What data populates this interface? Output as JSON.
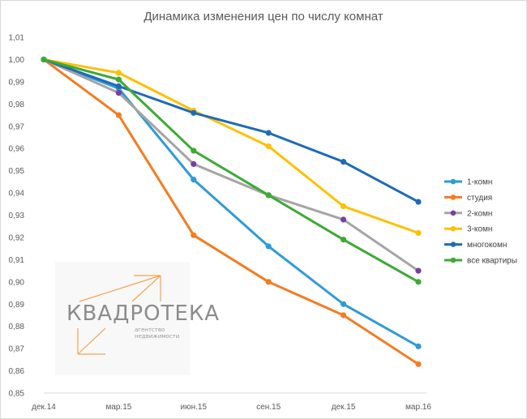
{
  "chart_data": {
    "type": "line",
    "title": "Динамика изменения цен по числу комнат",
    "categories": [
      "дек.14",
      "мар.15",
      "июн.15",
      "сен.15",
      "дек.15",
      "мар.16"
    ],
    "y_tick_labels": [
      "0,85",
      "0,86",
      "0,87",
      "0,88",
      "0,89",
      "0,90",
      "0,91",
      "0,92",
      "0,93",
      "0,94",
      "0,95",
      "0,96",
      "0,97",
      "0,98",
      "0,99",
      "1,00",
      "1,01"
    ],
    "ylim": [
      0.85,
      1.01
    ],
    "grid": false,
    "legend_position": "right",
    "series": [
      {
        "name": "1-комн",
        "color": "#2e9bd6",
        "values": [
          1.0,
          0.987,
          0.946,
          0.916,
          0.89,
          0.871
        ]
      },
      {
        "name": "студия",
        "color": "#f47c20",
        "values": [
          1.0,
          0.975,
          0.921,
          0.9,
          0.885,
          0.863
        ]
      },
      {
        "name": "2-комн",
        "color": "#a5a5a5",
        "marker_color": "#7a3ea0",
        "values": [
          1.0,
          0.985,
          0.953,
          0.939,
          0.928,
          0.905
        ]
      },
      {
        "name": "3-комн",
        "color": "#ffc000",
        "values": [
          1.0,
          0.994,
          0.977,
          0.961,
          0.934,
          0.922
        ]
      },
      {
        "name": "многокомн",
        "color": "#1f6ab8",
        "values": [
          1.0,
          0.988,
          0.976,
          0.967,
          0.954,
          0.936
        ]
      },
      {
        "name": "все квартиры",
        "color": "#3daa35",
        "values": [
          1.0,
          0.991,
          0.959,
          0.939,
          0.919,
          0.9
        ]
      }
    ]
  },
  "logo": {
    "name": "КВАДРОТЕКА",
    "tagline_line1": "агентство",
    "tagline_line2": "недвижимости",
    "accent_color": "#f5a352"
  }
}
